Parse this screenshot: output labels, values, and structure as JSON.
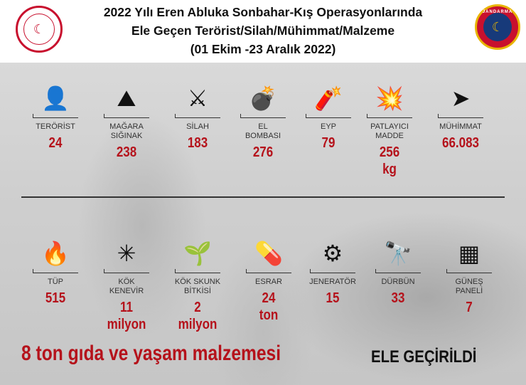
{
  "header": {
    "title_lines": [
      "2022 Yılı Eren Abluka Sonbahar-Kış Operasyonlarında",
      "Ele Geçen Terörist/Silah/Mühimmat/Malzeme",
      "(01 Ekim -23 Aralık 2022)"
    ],
    "left_logo": "T.C. İçişleri Bakanlığı",
    "right_logo": "JANDARMA"
  },
  "row1": [
    {
      "icon": "terrorist-icon",
      "glyph": "👤",
      "label": "TERÖRİST",
      "value": "24"
    },
    {
      "icon": "cave-icon",
      "glyph": "⛰",
      "label": "MAĞARA\nSIĞINAK",
      "value": "238"
    },
    {
      "icon": "rifle-icon",
      "glyph": "⚔",
      "label": "SİLAH",
      "value": "183"
    },
    {
      "icon": "grenade-icon",
      "glyph": "💣",
      "label": "EL\nBOMBASI",
      "value": "276"
    },
    {
      "icon": "ied-icon",
      "glyph": "🧨",
      "label": "EYP",
      "value": "79"
    },
    {
      "icon": "explosive-icon",
      "glyph": "💥",
      "label": "PATLAYICI\nMADDE",
      "value": "256\nkg"
    },
    {
      "icon": "bullet-icon",
      "glyph": "➤",
      "label": "MÜHİMMAT",
      "value": "66.083"
    }
  ],
  "row2": [
    {
      "icon": "gas-cylinder-icon",
      "glyph": "🔥",
      "label": "TÜP",
      "value": "515"
    },
    {
      "icon": "cannabis-leaf-icon",
      "glyph": "✳",
      "label": "KÖK\nKENEVİR",
      "value": "11\nmilyon"
    },
    {
      "icon": "sprout-icon",
      "glyph": "🌱",
      "label": "KÖK SKUNK\nBİTKİSİ",
      "value": "2\nmilyon"
    },
    {
      "icon": "pills-icon",
      "glyph": "💊",
      "label": "ESRAR",
      "value": "24\nton"
    },
    {
      "icon": "generator-icon",
      "glyph": "⚙",
      "label": "JENERATÖR",
      "value": "15"
    },
    {
      "icon": "binoculars-icon",
      "glyph": "🔭",
      "label": "DÜRBÜN",
      "value": "33"
    },
    {
      "icon": "solar-panel-icon",
      "glyph": "▦",
      "label": "GÜNEŞ\nPANELİ",
      "value": "7"
    }
  ],
  "footer": {
    "food": "8 ton gıda ve yaşam malzemesi",
    "seized": "ELE GEÇİRİLDİ"
  },
  "colors": {
    "accent": "#b5121b",
    "text": "#111111"
  }
}
